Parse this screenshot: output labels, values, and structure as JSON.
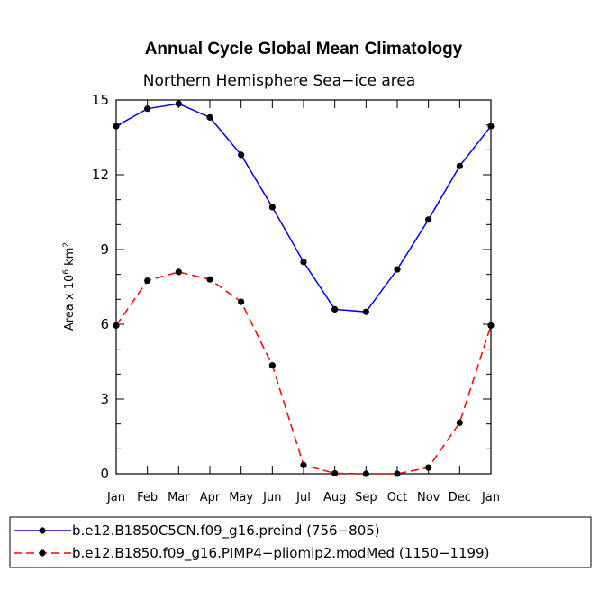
{
  "chart_data": {
    "type": "line",
    "title": "Annual Cycle Global Mean Climatology",
    "subtitle": "Northern Hemisphere Sea−ice area",
    "ylabel_prefix": "Area x 10",
    "ylabel_exponent": "6",
    "ylabel_suffix": " km",
    "ylabel_unit_exponent": "2",
    "xlabel": "",
    "ylim": [
      0,
      15
    ],
    "yticks": [
      "0",
      "3",
      "6",
      "9",
      "12",
      "15"
    ],
    "categories": [
      "Jan",
      "Feb",
      "Mar",
      "Apr",
      "May",
      "Jun",
      "Jul",
      "Aug",
      "Sep",
      "Oct",
      "Nov",
      "Dec",
      "Jan"
    ],
    "series": [
      {
        "name": "b.e12.B1850C5CN.f09_g16.preind (756−805)",
        "color": "#0000ff",
        "dash": "solid",
        "values": [
          13.95,
          14.65,
          14.85,
          14.3,
          12.8,
          10.7,
          8.5,
          6.6,
          6.5,
          8.2,
          10.2,
          12.35,
          13.95
        ]
      },
      {
        "name": "b.e12.B1850.f09_g16.PIMP4−pliomip2.modMed (1150−1199)",
        "color": "#ff0000",
        "dash": "dashed",
        "values": [
          5.95,
          7.75,
          8.1,
          7.8,
          6.9,
          4.35,
          0.35,
          0.02,
          0.0,
          0.0,
          0.25,
          2.05,
          5.95
        ]
      }
    ],
    "legend_position": "bottom-left",
    "grid": false,
    "marker_color": "#000000"
  }
}
